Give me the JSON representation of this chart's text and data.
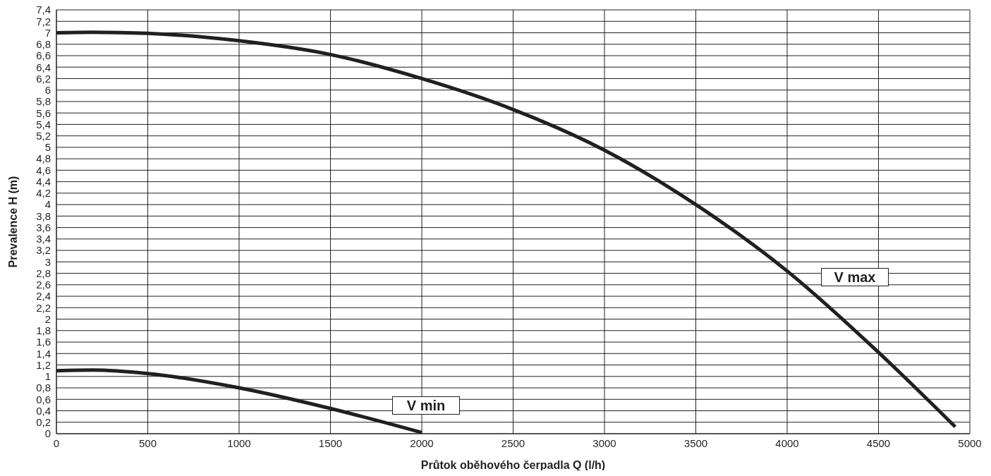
{
  "chart_data": {
    "type": "line",
    "xlabel": "Průtok oběhového čerpadla Q (l/h)",
    "ylabel": "Prevalence H (m)",
    "xlim": [
      0,
      5000
    ],
    "xticks": [
      0,
      500,
      1000,
      1500,
      2000,
      2500,
      3000,
      3500,
      4000,
      4500,
      5000
    ],
    "ylim": [
      0,
      7.4
    ],
    "yticks": [
      0,
      {
        "value": 0.2,
        "label": "0,2"
      },
      {
        "value": 0.4,
        "label": "0,4"
      },
      {
        "value": 0.6,
        "label": "0,6"
      },
      {
        "value": 0.8,
        "label": "0,8"
      },
      1,
      {
        "value": 1.2,
        "label": "1,2"
      },
      {
        "value": 1.4,
        "label": "1,4"
      },
      {
        "value": 1.6,
        "label": "1,6"
      },
      {
        "value": 1.8,
        "label": "1,8"
      },
      2,
      {
        "value": 2.2,
        "label": "2,2"
      },
      {
        "value": 2.4,
        "label": "2,4"
      },
      {
        "value": 2.6,
        "label": "2,6"
      },
      {
        "value": 2.8,
        "label": "2,8"
      },
      3,
      {
        "value": 3.2,
        "label": "3,2"
      },
      {
        "value": 3.4,
        "label": "3,4"
      },
      {
        "value": 3.6,
        "label": "3,6"
      },
      {
        "value": 3.8,
        "label": "3,8"
      },
      4,
      {
        "value": 4.2,
        "label": "4,2"
      },
      {
        "value": 4.4,
        "label": "4,4"
      },
      {
        "value": 4.6,
        "label": "4,6"
      },
      {
        "value": 4.8,
        "label": "4,8"
      },
      5,
      {
        "value": 5.2,
        "label": "5,2"
      },
      {
        "value": 5.4,
        "label": "5,4"
      },
      {
        "value": 5.6,
        "label": "5,6"
      },
      {
        "value": 5.8,
        "label": "5,8"
      },
      6,
      {
        "value": 6.2,
        "label": "6,2"
      },
      {
        "value": 6.4,
        "label": "6,4"
      },
      {
        "value": 6.6,
        "label": "6,6"
      },
      {
        "value": 6.8,
        "label": "6,8"
      },
      7,
      {
        "value": 7.2,
        "label": "7,2"
      },
      {
        "value": 7.4,
        "label": "7,4"
      }
    ],
    "grid": true,
    "marker": "none",
    "line_style": "solid",
    "series": [
      {
        "color": "#231f20",
        "x": [
          0,
          200,
          500,
          1000,
          1500,
          2000,
          2500,
          3000,
          3500,
          4000,
          4500,
          4920
        ],
        "values": [
          7.0,
          7.01,
          6.99,
          6.86,
          6.62,
          6.2,
          5.66,
          4.95,
          4.0,
          2.84,
          1.42,
          0.12
        ]
      },
      {
        "color": "#231f20",
        "x": [
          0,
          200,
          500,
          1000,
          1500,
          2000
        ],
        "values": [
          1.1,
          1.11,
          1.05,
          0.8,
          0.44,
          0.02
        ]
      }
    ],
    "annotations": [
      "V max",
      "V min"
    ]
  }
}
